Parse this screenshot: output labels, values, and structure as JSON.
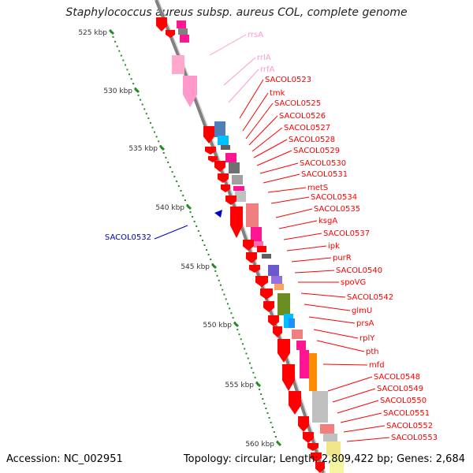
{
  "title": "Staphylococcus aureus subsp. aureus COL, complete genome",
  "accession": "Accession: NC_002951",
  "topology": "Topology: circular; Length: 2,809,422 bp; Genes: 2,684",
  "colors": {
    "cds": "#ff0000",
    "rrna": "#ff99cc",
    "reverse_label": "#0000cc",
    "tick": "#228b22",
    "backbone": "#808080"
  },
  "ticks": [
    "525 kbp",
    "530 kbp",
    "535 kbp",
    "540 kbp",
    "545 kbp",
    "550 kbp",
    "555 kbp",
    "560 kbp"
  ],
  "reverse_labels": [
    "SACOL0532"
  ],
  "gene_labels": [
    {
      "text": "rrsA",
      "type": "rrna"
    },
    {
      "text": "rrlA",
      "type": "rrna"
    },
    {
      "text": "rrfA",
      "type": "rrna"
    },
    {
      "text": "SACOL0523",
      "type": "cds"
    },
    {
      "text": "tmk",
      "type": "cds"
    },
    {
      "text": "SACOL0525",
      "type": "cds"
    },
    {
      "text": "SACOL0526",
      "type": "cds"
    },
    {
      "text": "SACOL0527",
      "type": "cds"
    },
    {
      "text": "SACOL0528",
      "type": "cds"
    },
    {
      "text": "SACOL0529",
      "type": "cds"
    },
    {
      "text": "SACOL0530",
      "type": "cds"
    },
    {
      "text": "SACOL0531",
      "type": "cds"
    },
    {
      "text": "metS",
      "type": "cds"
    },
    {
      "text": "SACOL0534",
      "type": "cds"
    },
    {
      "text": "SACOL0535",
      "type": "cds"
    },
    {
      "text": "ksgA",
      "type": "cds"
    },
    {
      "text": "SACOL0537",
      "type": "cds"
    },
    {
      "text": "ipk",
      "type": "cds"
    },
    {
      "text": "purR",
      "type": "cds"
    },
    {
      "text": "SACOL0540",
      "type": "cds"
    },
    {
      "text": "spoVG",
      "type": "cds"
    },
    {
      "text": "SACOL0542",
      "type": "cds"
    },
    {
      "text": "glmU",
      "type": "cds"
    },
    {
      "text": "prsA",
      "type": "cds"
    },
    {
      "text": "rplY",
      "type": "cds"
    },
    {
      "text": "pth",
      "type": "cds"
    },
    {
      "text": "mfd",
      "type": "cds"
    },
    {
      "text": "SACOL0548",
      "type": "cds"
    },
    {
      "text": "SACOL0549",
      "type": "cds"
    },
    {
      "text": "SACOL0550",
      "type": "cds"
    },
    {
      "text": "SACOL0551",
      "type": "cds"
    },
    {
      "text": "SACOL0552",
      "type": "cds"
    },
    {
      "text": "SACOL0553",
      "type": "cds"
    }
  ]
}
